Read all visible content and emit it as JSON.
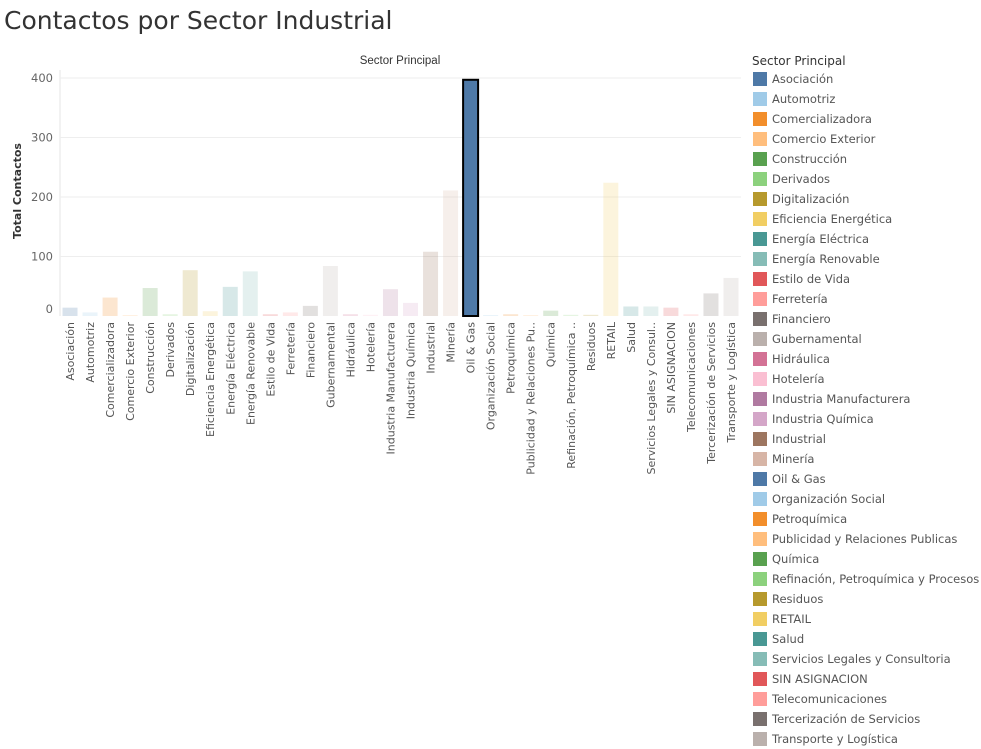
{
  "title": "Contactos por Sector Industrial",
  "chart_data": {
    "type": "bar",
    "title": "Contactos por Sector Industrial",
    "column_header": "Sector Principal",
    "ylabel": "Total Contactos",
    "xlabel": "",
    "ylim": [
      0,
      410
    ],
    "yticks": [
      0,
      100,
      200,
      300,
      400
    ],
    "grid": true,
    "highlighted": "Oil & Gas",
    "legend_position": "right",
    "categories": [
      "Asociación",
      "Automotriz",
      "Comercializadora",
      "Comercio Exterior",
      "Construcción",
      "Derivados",
      "Digitalización",
      "Eficiencia Energética",
      "Energía Eléctrica",
      "Energía Renovable",
      "Estilo de Vida",
      "Ferretería",
      "Financiero",
      "Gubernamental",
      "Hidráulica",
      "Hotelería",
      "Industria Manufacturera",
      "Industria Química",
      "Industrial",
      "Minería",
      "Oil & Gas",
      "Organización Social",
      "Petroquímica",
      "Publicidad y Relaciones Pu..",
      "Química",
      "Refinación, Petroquímica ..",
      "Residuos",
      "RETAIL",
      "Salud",
      "Servicios Legales y Consul..",
      "SIN ASIGNACION",
      "Telecomunicaciones",
      "Tercerización de Servicios",
      "Transporte y Logística"
    ],
    "values": [
      14,
      6,
      31,
      1,
      47,
      3,
      77,
      8,
      49,
      75,
      3,
      6,
      17,
      84,
      3,
      2,
      45,
      22,
      108,
      211,
      397,
      1,
      3,
      1,
      9,
      2,
      2,
      224,
      16,
      16,
      14,
      3,
      38,
      64
    ]
  },
  "legend": {
    "title": "Sector Principal",
    "items": [
      {
        "label": "Asociación",
        "color": "#4e79a7"
      },
      {
        "label": "Automotriz",
        "color": "#a0cbe8"
      },
      {
        "label": "Comercializadora",
        "color": "#f28e2b"
      },
      {
        "label": "Comercio Exterior",
        "color": "#ffbe7d"
      },
      {
        "label": "Construcción",
        "color": "#59a14f"
      },
      {
        "label": "Derivados",
        "color": "#8cd17d"
      },
      {
        "label": "Digitalización",
        "color": "#b6992d"
      },
      {
        "label": "Eficiencia Energética",
        "color": "#f1ce63"
      },
      {
        "label": "Energía Eléctrica",
        "color": "#499894"
      },
      {
        "label": "Energía Renovable",
        "color": "#86bcb6"
      },
      {
        "label": "Estilo de Vida",
        "color": "#e15759"
      },
      {
        "label": "Ferretería",
        "color": "#ff9d9a"
      },
      {
        "label": "Financiero",
        "color": "#79706e"
      },
      {
        "label": "Gubernamental",
        "color": "#bab0ac"
      },
      {
        "label": "Hidráulica",
        "color": "#d37295"
      },
      {
        "label": "Hotelería",
        "color": "#fabfd2"
      },
      {
        "label": "Industria Manufacturera",
        "color": "#b07aa1"
      },
      {
        "label": "Industria Química",
        "color": "#d4a6c8"
      },
      {
        "label": "Industrial",
        "color": "#9d7660"
      },
      {
        "label": "Minería",
        "color": "#d7b5a6"
      },
      {
        "label": "Oil & Gas",
        "color": "#4e79a7"
      },
      {
        "label": "Organización Social",
        "color": "#a0cbe8"
      },
      {
        "label": "Petroquímica",
        "color": "#f28e2b"
      },
      {
        "label": "Publicidad y Relaciones Publicas",
        "color": "#ffbe7d"
      },
      {
        "label": "Química",
        "color": "#59a14f"
      },
      {
        "label": "Refinación, Petroquímica y Procesos",
        "color": "#8cd17d"
      },
      {
        "label": "Residuos",
        "color": "#b6992d"
      },
      {
        "label": "RETAIL",
        "color": "#f1ce63"
      },
      {
        "label": "Salud",
        "color": "#499894"
      },
      {
        "label": "Servicios Legales y Consultoria",
        "color": "#86bcb6"
      },
      {
        "label": "SIN ASIGNACION",
        "color": "#e15759"
      },
      {
        "label": "Telecomunicaciones",
        "color": "#ff9d9a"
      },
      {
        "label": "Tercerización de Servicios",
        "color": "#79706e"
      },
      {
        "label": "Transporte y Logística",
        "color": "#bab0ac"
      }
    ]
  }
}
